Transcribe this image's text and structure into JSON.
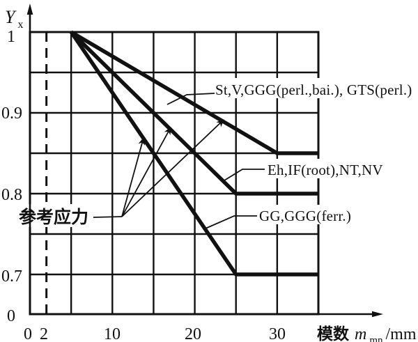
{
  "figure": {
    "background": "#ffffff",
    "ink_color": "#111111"
  },
  "y_axis": {
    "label_main": "Y",
    "label_sub": "x",
    "ticks": [
      "1",
      "0.9",
      "0.8",
      "0.7",
      "0"
    ]
  },
  "x_axis": {
    "ticks": [
      "0",
      "2",
      "10",
      "20",
      "30"
    ],
    "title_prefix": "模数",
    "title_symbol": "m",
    "title_symbol_sub": "mn",
    "title_suffix": "/mm"
  },
  "annotations": {
    "reference_stress": "参考应力"
  },
  "series_labels": {
    "st": "St,V,GGG(perl.,bai.),  GTS(perl.)",
    "eh": "Eh,IF(root),NT,NV",
    "gg": "GG,GGG(ferr.)"
  },
  "chart_data": {
    "type": "line",
    "title": "Size factor Y_x versus normal module m_mn",
    "xlabel": "模数 m_mn/mm",
    "ylabel": "Y_x",
    "xlim": [
      0,
      35
    ],
    "ylim_shown": [
      0.7,
      1.0
    ],
    "y_axis_break_label": "0",
    "x_gridlines_every": 5,
    "y_gridlines_every": 0.05,
    "dashed_vertical_line_x": 2,
    "x_tick_labels": [
      0,
      2,
      10,
      20,
      30
    ],
    "y_tick_labels": [
      1,
      0.9,
      0.8,
      0.7,
      0
    ],
    "grid": true,
    "legend_position": "inline-labels-with-leaders",
    "series": [
      {
        "name": "St,V,GGG(perl.,bai.), GTS(perl.)",
        "points": [
          [
            5,
            1.0
          ],
          [
            30,
            0.85
          ],
          [
            35,
            0.85
          ]
        ]
      },
      {
        "name": "Eh,IF(root),NT,NV",
        "points": [
          [
            5,
            1.0
          ],
          [
            25,
            0.8
          ],
          [
            35,
            0.8
          ]
        ]
      },
      {
        "name": "GG,GGG(ferr.)",
        "points": [
          [
            5,
            1.0
          ],
          [
            25,
            0.7
          ],
          [
            35,
            0.7
          ]
        ]
      }
    ],
    "annotation_note": "参考应力 (reference stress) leader fans into three arrows pointing at the three curves; all curves start at (5, 1.0)"
  }
}
